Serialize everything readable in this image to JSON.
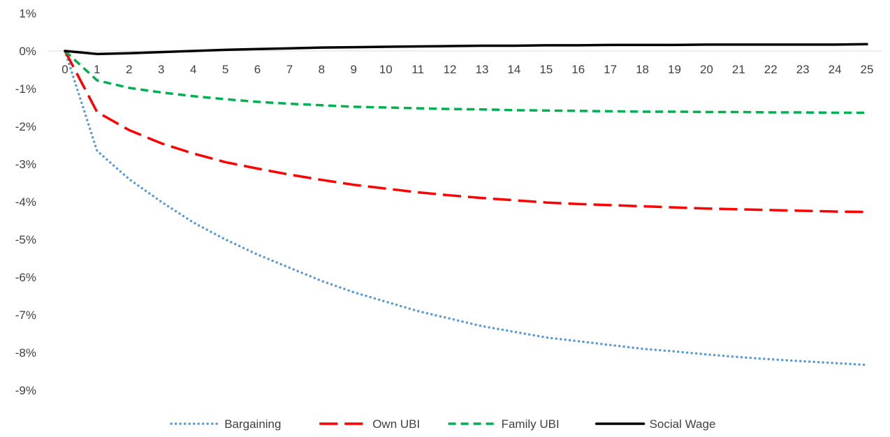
{
  "chart_data": {
    "type": "line",
    "title": "",
    "xlabel": "",
    "ylabel": "",
    "x": [
      0,
      1,
      2,
      3,
      4,
      5,
      6,
      7,
      8,
      9,
      10,
      11,
      12,
      13,
      14,
      15,
      16,
      17,
      18,
      19,
      20,
      21,
      22,
      23,
      24,
      25
    ],
    "x_tick_labels": [
      "0",
      "1",
      "2",
      "3",
      "4",
      "5",
      "6",
      "7",
      "8",
      "9",
      "10",
      "11",
      "12",
      "13",
      "14",
      "15",
      "16",
      "17",
      "18",
      "19",
      "20",
      "21",
      "22",
      "23",
      "24",
      "25"
    ],
    "ylim": [
      -9,
      1
    ],
    "y_ticks": [
      1,
      0,
      -1,
      -2,
      -3,
      -4,
      -5,
      -6,
      -7,
      -8,
      -9
    ],
    "y_tick_labels": [
      "1%",
      "0%",
      "-1%",
      "-2%",
      "-3%",
      "-4%",
      "-5%",
      "-6%",
      "-7%",
      "-8%",
      "-9%"
    ],
    "grid": false,
    "legend_position": "bottom",
    "series": [
      {
        "name": "Bargaining",
        "color": "#5b9bd5",
        "dash": "dotted",
        "values": [
          0,
          -2.65,
          -3.4,
          -4.0,
          -4.55,
          -5.0,
          -5.4,
          -5.75,
          -6.1,
          -6.4,
          -6.65,
          -6.9,
          -7.1,
          -7.3,
          -7.45,
          -7.6,
          -7.7,
          -7.8,
          -7.9,
          -7.97,
          -8.05,
          -8.12,
          -8.18,
          -8.23,
          -8.28,
          -8.33
        ]
      },
      {
        "name": "Own UBI",
        "color": "#ff0000",
        "dash": "long-dash",
        "values": [
          0,
          -1.62,
          -2.1,
          -2.45,
          -2.72,
          -2.95,
          -3.12,
          -3.28,
          -3.42,
          -3.55,
          -3.65,
          -3.75,
          -3.83,
          -3.9,
          -3.96,
          -4.02,
          -4.06,
          -4.09,
          -4.12,
          -4.15,
          -4.18,
          -4.2,
          -4.22,
          -4.24,
          -4.26,
          -4.27
        ]
      },
      {
        "name": "Family UBI",
        "color": "#00b050",
        "dash": "dash",
        "values": [
          0,
          -0.78,
          -0.98,
          -1.1,
          -1.2,
          -1.28,
          -1.35,
          -1.4,
          -1.44,
          -1.48,
          -1.5,
          -1.52,
          -1.54,
          -1.55,
          -1.57,
          -1.58,
          -1.59,
          -1.6,
          -1.61,
          -1.61,
          -1.62,
          -1.62,
          -1.63,
          -1.63,
          -1.64,
          -1.64
        ]
      },
      {
        "name": "Social Wage",
        "color": "#000000",
        "dash": "solid",
        "values": [
          0,
          -0.08,
          -0.06,
          -0.03,
          0.0,
          0.03,
          0.05,
          0.07,
          0.09,
          0.1,
          0.11,
          0.12,
          0.13,
          0.14,
          0.14,
          0.15,
          0.15,
          0.16,
          0.16,
          0.16,
          0.17,
          0.17,
          0.17,
          0.17,
          0.17,
          0.18
        ]
      }
    ]
  }
}
